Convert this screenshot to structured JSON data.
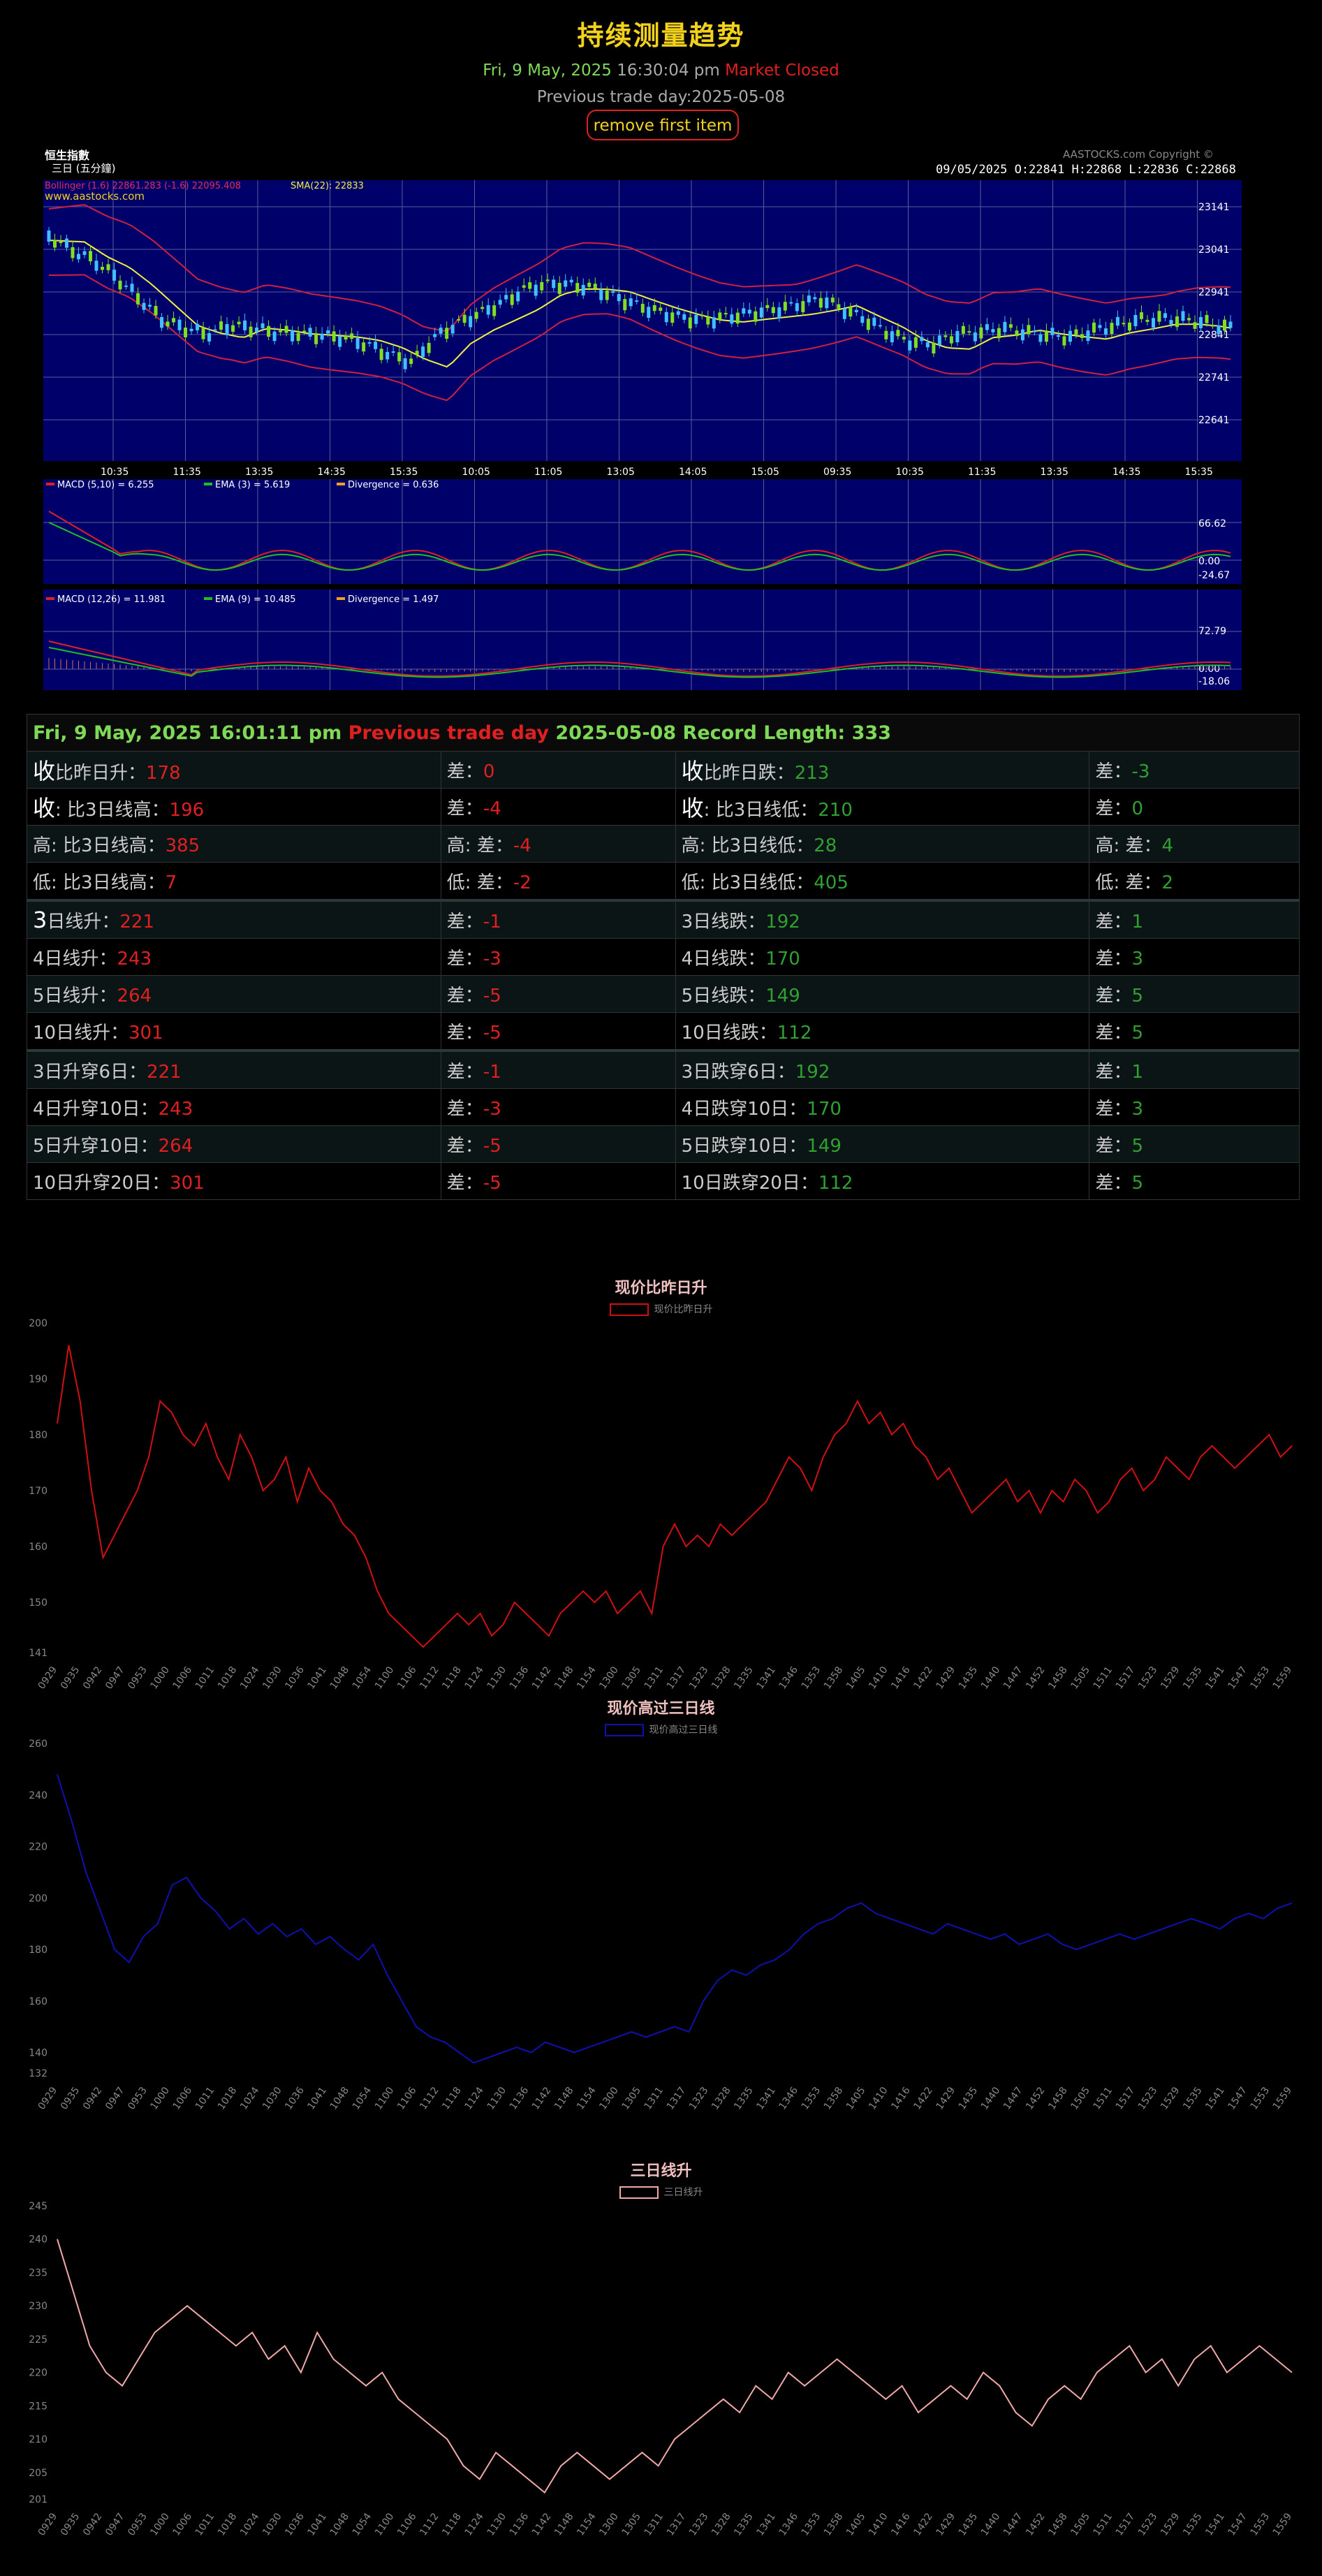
{
  "header": {
    "title": "持续测量趋势",
    "date_text": "Fri, 9 May, 2025",
    "time_text": "16:30:04 pm",
    "market_status": "Market Closed",
    "previous_trade_day": "Previous trade day:2025-05-08",
    "remove_button": "remove first item"
  },
  "aastocks_chart": {
    "index_name": "恒生指數",
    "period": "三日 (五分鐘)",
    "copyright": "AASTOCKS.com Copyright ©",
    "ohlc": "09/05/2025   O:22841  H:22868  L:22836  C:22868",
    "bollinger_legend": "Bollinger (1.6) 22861.283 (-1.6) 22095.408",
    "sma_legend": "SMA(22): 22833",
    "site": "www.aastocks.com",
    "price_ticks": [
      "23141",
      "23041",
      "22941",
      "22841",
      "22741",
      "22641"
    ],
    "time_ticks": [
      "10:35",
      "11:35",
      "13:35",
      "14:35",
      "15:35",
      "10:05",
      "11:05",
      "13:05",
      "14:05",
      "15:05",
      "09:35",
      "10:35",
      "11:35",
      "13:35",
      "14:35",
      "15:35"
    ],
    "macd1": {
      "macd": "MACD (5,10) = 6.255",
      "ema": "EMA (3) = 5.619",
      "div": "Divergence = 0.636",
      "ticks": [
        "66.62",
        "0.00",
        "-24.67"
      ]
    },
    "macd2": {
      "macd": "MACD (12,26) = 11.981",
      "ema": "EMA (9) = 10.485",
      "div": "Divergence = 1.497",
      "ticks": [
        "72.79",
        "0.00",
        "-18.06"
      ]
    }
  },
  "table": {
    "head_date": "Fri, 9 May, 2025 16:01:11 pm",
    "head_prev": "Previous trade day",
    "head_day": "2025-05-08",
    "head_len": "Record Length: 333",
    "rows": [
      {
        "l1": "收",
        "l1b": "比昨日升：",
        "v1": "178",
        "l2": "差：",
        "v2": "0",
        "l3": "收",
        "l3b": "比昨日跌：",
        "v3": "213",
        "l4": "差：",
        "v4": "-3"
      },
      {
        "l1": "收",
        "l1b": ": 比3日线高：",
        "v1": "196",
        "l2": "差：",
        "v2": "-4",
        "l3": "收",
        "l3b": ": 比3日线低：",
        "v3": "210",
        "l4": "差：",
        "v4": "0"
      },
      {
        "l1": "",
        "l1b": "高: 比3日线高：",
        "v1": "385",
        "l2": "高: 差：",
        "v2": "-4",
        "l3": "",
        "l3b": "高: 比3日线低：",
        "v3": "28",
        "l4": "高: 差：",
        "v4": "4"
      },
      {
        "l1": "",
        "l1b": "低: 比3日线高：",
        "v1": "7",
        "l2": "低: 差：",
        "v2": "-2",
        "l3": "",
        "l3b": "低: 比3日线低：",
        "v3": "405",
        "l4": "低: 差：",
        "v4": "2"
      },
      {
        "l1": "3",
        "l1b": "日线升：",
        "v1": "221",
        "l2": "差：",
        "v2": "-1",
        "l3": "",
        "l3b": "3日线跌：",
        "v3": "192",
        "l4": "差：",
        "v4": "1"
      },
      {
        "l1": "",
        "l1b": "4日线升：",
        "v1": "243",
        "l2": "差：",
        "v2": "-3",
        "l3": "",
        "l3b": "4日线跌：",
        "v3": "170",
        "l4": "差：",
        "v4": "3"
      },
      {
        "l1": "",
        "l1b": "5日线升：",
        "v1": "264",
        "l2": "差：",
        "v2": "-5",
        "l3": "",
        "l3b": "5日线跌：",
        "v3": "149",
        "l4": "差：",
        "v4": "5"
      },
      {
        "l1": "",
        "l1b": "10日线升：",
        "v1": "301",
        "l2": "差：",
        "v2": "-5",
        "l3": "",
        "l3b": "10日线跌：",
        "v3": "112",
        "l4": "差：",
        "v4": "5"
      },
      {
        "l1": "",
        "l1b": "3日升穿6日：",
        "v1": "221",
        "l2": "差：",
        "v2": "-1",
        "l3": "",
        "l3b": "3日跌穿6日：",
        "v3": "192",
        "l4": "差：",
        "v4": "1"
      },
      {
        "l1": "",
        "l1b": "4日升穿10日：",
        "v1": "243",
        "l2": "差：",
        "v2": "-3",
        "l3": "",
        "l3b": "4日跌穿10日：",
        "v3": "170",
        "l4": "差：",
        "v4": "3"
      },
      {
        "l1": "",
        "l1b": "5日升穿10日：",
        "v1": "264",
        "l2": "差：",
        "v2": "-5",
        "l3": "",
        "l3b": "5日跌穿10日：",
        "v3": "149",
        "l4": "差：",
        "v4": "5"
      },
      {
        "l1": "",
        "l1b": "10日升穿20日：",
        "v1": "301",
        "l2": "差：",
        "v2": "-5",
        "l3": "",
        "l3b": "10日跌穿20日：",
        "v3": "112",
        "l4": "差：",
        "v4": "5"
      }
    ]
  },
  "chart_data": [
    {
      "type": "line",
      "title": "现价比昨日升",
      "series": [
        {
          "name": "现价比昨日升",
          "color": "#d01010",
          "values": [
            182,
            196,
            186,
            170,
            158,
            162,
            166,
            170,
            176,
            186,
            184,
            180,
            178,
            182,
            176,
            172,
            180,
            176,
            170,
            172,
            176,
            168,
            174,
            170,
            168,
            164,
            162,
            158,
            152,
            148,
            146,
            144,
            142,
            144,
            146,
            148,
            146,
            148,
            144,
            146,
            150,
            148,
            146,
            144,
            148,
            150,
            152,
            150,
            152,
            148,
            150,
            152,
            148,
            160,
            164,
            160,
            162,
            160,
            164,
            162,
            164,
            166,
            168,
            172,
            176,
            174,
            170,
            176,
            180,
            182,
            186,
            182,
            184,
            180,
            182,
            178,
            176,
            172,
            174,
            170,
            166,
            168,
            170,
            172,
            168,
            170,
            166,
            170,
            168,
            172,
            170,
            166,
            168,
            172,
            174,
            170,
            172,
            176,
            174,
            172,
            176,
            178,
            176,
            174,
            176,
            178,
            180,
            176,
            178
          ]
        }
      ],
      "x_ticks": [
        "0929",
        "0935",
        "0942",
        "0947",
        "0953",
        "1000",
        "1006",
        "1011",
        "1018",
        "1024",
        "1030",
        "1036",
        "1041",
        "1048",
        "1054",
        "1100",
        "1106",
        "1112",
        "1118",
        "1124",
        "1130",
        "1136",
        "1142",
        "1148",
        "1154",
        "1300",
        "1305",
        "1311",
        "1317",
        "1323",
        "1328",
        "1335",
        "1341",
        "1346",
        "1353",
        "1358",
        "1405",
        "1410",
        "1416",
        "1422",
        "1429",
        "1435",
        "1440",
        "1447",
        "1452",
        "1458",
        "1505",
        "1511",
        "1517",
        "1523",
        "1529",
        "1535",
        "1541",
        "1547",
        "1553",
        "1559"
      ],
      "y_ticks": [
        "200",
        "190",
        "180",
        "170",
        "160",
        "150",
        "141"
      ],
      "ylim": [
        141,
        200
      ]
    },
    {
      "type": "line",
      "title": "现价高过三日线",
      "series": [
        {
          "name": "现价高过三日线",
          "color": "#1010b0",
          "values": [
            248,
            230,
            210,
            195,
            180,
            175,
            185,
            190,
            205,
            208,
            200,
            195,
            188,
            192,
            186,
            190,
            185,
            188,
            182,
            185,
            180,
            176,
            182,
            170,
            160,
            150,
            146,
            144,
            140,
            136,
            138,
            140,
            142,
            140,
            144,
            142,
            140,
            142,
            144,
            146,
            148,
            146,
            148,
            150,
            148,
            160,
            168,
            172,
            170,
            174,
            176,
            180,
            186,
            190,
            192,
            196,
            198,
            194,
            192,
            190,
            188,
            186,
            190,
            188,
            186,
            184,
            186,
            182,
            184,
            186,
            182,
            180,
            182,
            184,
            186,
            184,
            186,
            188,
            190,
            192,
            190,
            188,
            192,
            194,
            192,
            196,
            198
          ]
        }
      ],
      "x_ticks": [
        "0929",
        "0935",
        "0942",
        "0947",
        "0953",
        "1000",
        "1006",
        "1011",
        "1018",
        "1024",
        "1030",
        "1036",
        "1041",
        "1048",
        "1054",
        "1100",
        "1106",
        "1112",
        "1118",
        "1124",
        "1130",
        "1136",
        "1142",
        "1148",
        "1154",
        "1300",
        "1305",
        "1311",
        "1317",
        "1323",
        "1328",
        "1335",
        "1341",
        "1346",
        "1353",
        "1358",
        "1405",
        "1410",
        "1416",
        "1422",
        "1429",
        "1435",
        "1440",
        "1447",
        "1452",
        "1458",
        "1505",
        "1511",
        "1517",
        "1523",
        "1529",
        "1535",
        "1541",
        "1547",
        "1553",
        "1559"
      ],
      "y_ticks": [
        "260",
        "240",
        "220",
        "200",
        "180",
        "160",
        "140",
        "132"
      ],
      "ylim": [
        132,
        260
      ]
    },
    {
      "type": "line",
      "title": "三日线升",
      "series": [
        {
          "name": "三日线升",
          "color": "#f0a8a8",
          "values": [
            240,
            232,
            224,
            220,
            218,
            222,
            226,
            228,
            230,
            228,
            226,
            224,
            226,
            222,
            224,
            220,
            226,
            222,
            220,
            218,
            220,
            216,
            214,
            212,
            210,
            206,
            204,
            208,
            206,
            204,
            202,
            206,
            208,
            206,
            204,
            206,
            208,
            206,
            210,
            212,
            214,
            216,
            214,
            218,
            216,
            220,
            218,
            220,
            222,
            220,
            218,
            216,
            218,
            214,
            216,
            218,
            216,
            220,
            218,
            214,
            212,
            216,
            218,
            216,
            220,
            222,
            224,
            220,
            222,
            218,
            222,
            224,
            220,
            222,
            224,
            222,
            220
          ]
        }
      ],
      "x_ticks": [
        "0929",
        "0935",
        "0942",
        "0947",
        "0953",
        "1000",
        "1006",
        "1011",
        "1018",
        "1024",
        "1030",
        "1036",
        "1041",
        "1048",
        "1054",
        "1100",
        "1106",
        "1112",
        "1118",
        "1124",
        "1130",
        "1136",
        "1142",
        "1148",
        "1154",
        "1300",
        "1305",
        "1311",
        "1317",
        "1323",
        "1328",
        "1335",
        "1341",
        "1346",
        "1353",
        "1358",
        "1405",
        "1410",
        "1416",
        "1422",
        "1429",
        "1435",
        "1440",
        "1447",
        "1452",
        "1458",
        "1505",
        "1511",
        "1517",
        "1523",
        "1529",
        "1535",
        "1541",
        "1547",
        "1553",
        "1559"
      ],
      "y_ticks": [
        "245",
        "240",
        "235",
        "230",
        "225",
        "220",
        "215",
        "210",
        "205",
        "201"
      ],
      "ylim": [
        201,
        245
      ]
    }
  ]
}
